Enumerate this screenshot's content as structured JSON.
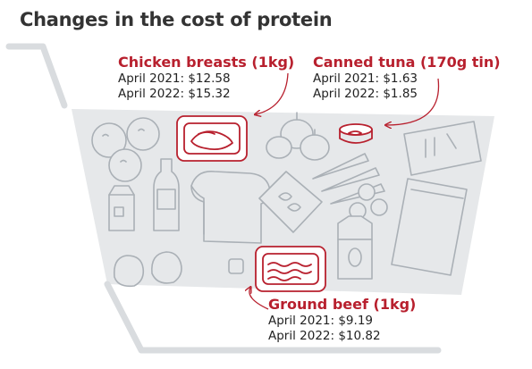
{
  "title": "Changes in the cost of protein",
  "accent_color": "#b8202e",
  "cart_fill": "#e6e8ea",
  "outline_color": "#aab0b6",
  "callouts": {
    "chicken": {
      "name": "Chicken breasts (1kg)",
      "april_2021": "April 2021: $12.58",
      "april_2022": "April 2022: $15.32"
    },
    "tuna": {
      "name": "Canned tuna (170g tin)",
      "april_2021": "April 2021: $1.63",
      "april_2022": "April 2022: $1.85"
    },
    "beef": {
      "name": "Ground beef (1kg)",
      "april_2021": "April 2021: $9.19",
      "april_2022": "April 2022: $10.82"
    }
  }
}
